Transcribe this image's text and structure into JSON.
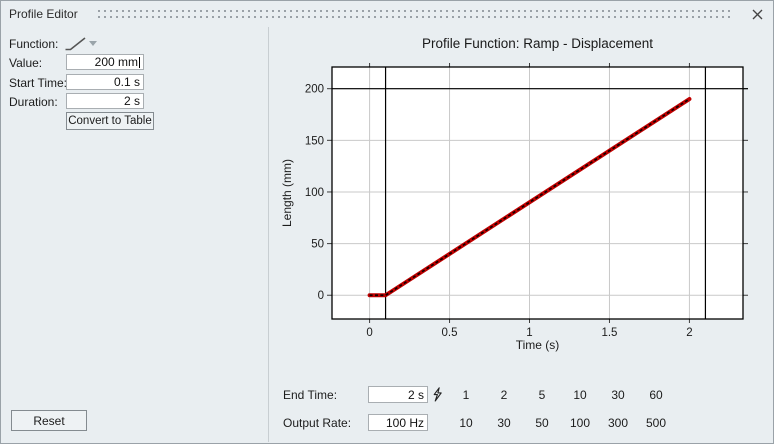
{
  "window": {
    "title": "Profile Editor"
  },
  "left_panel": {
    "function_label": "Function:",
    "fields": [
      {
        "label": "Value:",
        "value": "200 mm"
      },
      {
        "label": "Start Time:",
        "value": "0.1 s"
      },
      {
        "label": "Duration:",
        "value": "2 s"
      }
    ],
    "convert_button_label": "Convert to Table",
    "reset_button_label": "Reset"
  },
  "chart_data": {
    "type": "line",
    "title": "Profile Function: Ramp - Displacement",
    "xlabel": "Time (s)",
    "ylabel": "Length (mm)",
    "xlim": [
      -0.235,
      2.335
    ],
    "ylim": [
      -23,
      221
    ],
    "xticks": [
      0,
      0.5,
      1,
      1.5,
      2
    ],
    "yticks": [
      0,
      50,
      100,
      150,
      200
    ],
    "grid": true,
    "grid_color": "#c9c9c9",
    "axis_color": "#000000",
    "tick_color": "#3c3c3c",
    "cursors": {
      "x": [
        0.1,
        2.1
      ],
      "y": [
        200
      ]
    },
    "series": [
      {
        "name": "Ramp - Displacement",
        "line_color": "#c00000",
        "point_color": "#140000",
        "points": [
          [
            0,
            0
          ],
          [
            0.1,
            0
          ],
          [
            2.0,
            190
          ]
        ]
      }
    ]
  },
  "bottom_controls": {
    "end_time": {
      "label": "End Time:",
      "value": "2 s",
      "presets": [
        "1",
        "2",
        "5",
        "10",
        "30",
        "60"
      ]
    },
    "output_rate": {
      "label": "Output Rate:",
      "value": "100 Hz",
      "presets": [
        "10",
        "30",
        "50",
        "100",
        "300",
        "500"
      ]
    }
  },
  "colors": {
    "background": "#e9eef1",
    "accent_line": "#c00000"
  }
}
